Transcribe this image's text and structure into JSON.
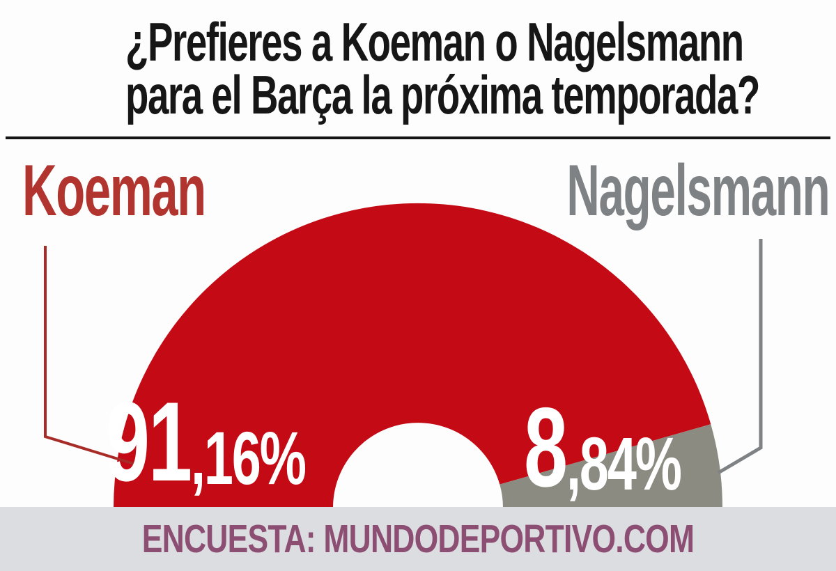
{
  "title": {
    "line1": "¿Prefieres a Koeman o Nagelsmann",
    "line2": "para el Barça la próxima temporada?",
    "color": "#161616"
  },
  "chart_data": {
    "type": "pie",
    "subtype": "semi-donut-gauge",
    "title": "¿Prefieres a Koeman o Nagelsmann para el Barça la próxima temporada?",
    "categories": [
      "Koeman",
      "Nagelsmann"
    ],
    "values": [
      91.16,
      8.84
    ],
    "value_labels": [
      "91,16%",
      "8,84%"
    ],
    "colors": [
      "#c40a14",
      "#8b8b82"
    ],
    "label_colors": [
      "#b2342f",
      "#7f8284"
    ],
    "value_text_color": "#ffffff",
    "start_angle_deg": 180,
    "end_angle_deg": 0,
    "inner_radius_ratio": 0.28,
    "legend_position": "above-sides",
    "source": "ENCUESTA: MUNDODEPORTIVO.COM"
  },
  "value_display": {
    "left": {
      "main": "91",
      "rest": ",16%"
    },
    "right": {
      "main": "8",
      "rest": ",84%"
    }
  },
  "footer": {
    "text": "ENCUESTA: MUNDODEPORTIVO.COM",
    "bg": "#dcdde0",
    "color": "#8d4e74"
  }
}
